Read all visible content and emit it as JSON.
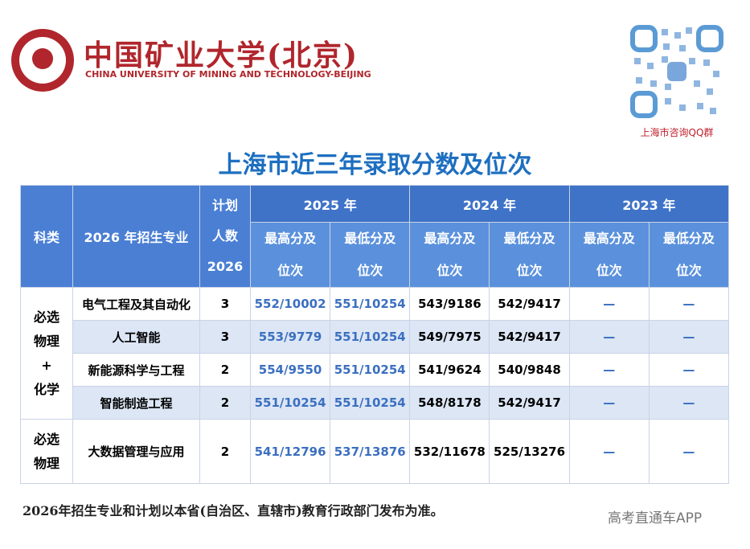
{
  "header": {
    "university_cn": "中国矿业大学(北京)",
    "university_en": "CHINA UNIVERSITY OF MINING AND TECHNOLOGY-BEIJING",
    "qr_caption": "上海市咨询QQ群"
  },
  "title": "上海市近三年录取分数及位次",
  "table": {
    "col_subject": "科类",
    "col_major": "2026 年招生专业",
    "col_plan": [
      "计划",
      "人数",
      "2026"
    ],
    "years": [
      "2025 年",
      "2024 年",
      "2023 年"
    ],
    "sub_headers": [
      "最高分及位次",
      "最低分及位次"
    ],
    "groups": [
      {
        "subject": [
          "必选",
          "物理",
          "+",
          "化学"
        ],
        "rows": [
          {
            "major": "电气工程及其自动化",
            "plan": 3,
            "scores": [
              "552/10002",
              "551/10254",
              "543/9186",
              "542/9417",
              "—",
              "—"
            ]
          },
          {
            "major": "人工智能",
            "plan": 3,
            "scores": [
              "553/9779",
              "551/10254",
              "549/7975",
              "542/9417",
              "—",
              "—"
            ]
          },
          {
            "major": "新能源科学与工程",
            "plan": 2,
            "scores": [
              "554/9550",
              "551/10254",
              "541/9624",
              "540/9848",
              "—",
              "—"
            ]
          },
          {
            "major": "智能制造工程",
            "plan": 2,
            "scores": [
              "551/10254",
              "551/10254",
              "548/8178",
              "542/9417",
              "—",
              "—"
            ]
          }
        ]
      },
      {
        "subject": [
          "必选",
          "物理"
        ],
        "rows": [
          {
            "major": "大数据管理与应用",
            "plan": 2,
            "scores": [
              "541/12796",
              "537/13876",
              "532/11678",
              "525/13276",
              "—",
              "—"
            ]
          }
        ]
      }
    ]
  },
  "footnote": "2026年招生专业和计划以本省(自治区、直辖市)教育行政部门发布为准。",
  "watermark": "高考直通车APP"
}
